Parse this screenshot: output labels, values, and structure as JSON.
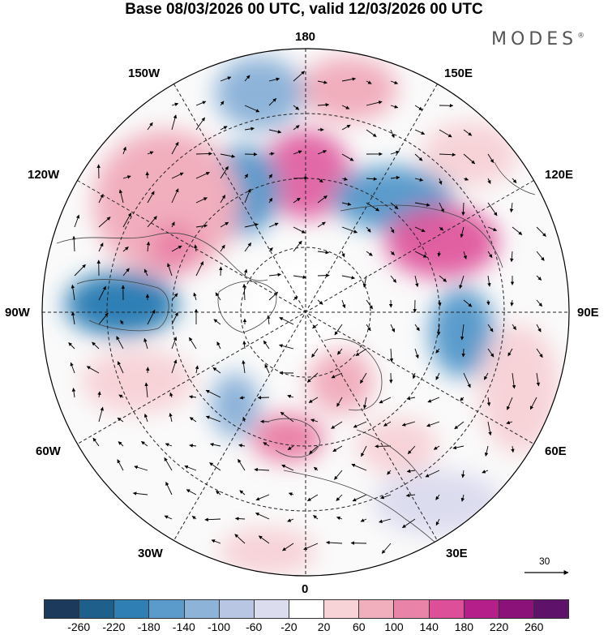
{
  "title": "Base 08/03/2026 00 UTC, valid 12/03/2026 00 UTC",
  "brand": "MODES",
  "brand_mark": "®",
  "longitude_labels": {
    "top": "180",
    "bottom": "0",
    "left": "90W",
    "right": "90E",
    "upper_left": "150W",
    "upper_right": "150E",
    "left_upper": "120W",
    "right_upper": "120E",
    "left_lower": "60W",
    "right_lower": "60E",
    "lower_left": "30W",
    "lower_right": "30E"
  },
  "reference_vector": {
    "value": "30"
  },
  "colorbar": {
    "ticks": [
      "-260",
      "-220",
      "-180",
      "-140",
      "-100",
      "-60",
      "-20",
      "20",
      "60",
      "100",
      "140",
      "180",
      "220",
      "260"
    ],
    "colors": [
      "#1b3a5c",
      "#1f5f8b",
      "#2f7fb5",
      "#5a9bcc",
      "#8db3d9",
      "#b8c6e3",
      "#dcdcef",
      "#ffffff",
      "#f7d3d8",
      "#f1aebd",
      "#ea83a8",
      "#de4f99",
      "#b51f8a",
      "#8a1278",
      "#5e1269"
    ]
  },
  "anomalies": [
    {
      "name": "pos-north-pacific",
      "sign": "pos",
      "strength": 3
    },
    {
      "name": "neg-east-siberia",
      "sign": "neg",
      "strength": 3
    },
    {
      "name": "pos-central-siberia",
      "sign": "pos",
      "strength": 3
    },
    {
      "name": "neg-alaska",
      "sign": "neg",
      "strength": 2
    },
    {
      "name": "neg-gulf-alaska",
      "sign": "neg",
      "strength": 1
    },
    {
      "name": "pos-west-canada",
      "sign": "pos",
      "strength": 2
    },
    {
      "name": "neg-hudson-bay",
      "sign": "neg",
      "strength": 3
    },
    {
      "name": "neg-west-siberia",
      "sign": "neg",
      "strength": 2
    },
    {
      "name": "pos-scandinavia",
      "sign": "pos",
      "strength": 2
    },
    {
      "name": "pos-north-atlantic",
      "sign": "pos",
      "strength": 2
    },
    {
      "name": "neg-east-atlantic",
      "sign": "neg",
      "strength": 1
    },
    {
      "name": "pos-mid-atlantic",
      "sign": "pos",
      "strength": 1
    },
    {
      "name": "pos-central-asia",
      "sign": "pos",
      "strength": 1
    },
    {
      "name": "pos-east-europe",
      "sign": "pos",
      "strength": 1
    }
  ]
}
